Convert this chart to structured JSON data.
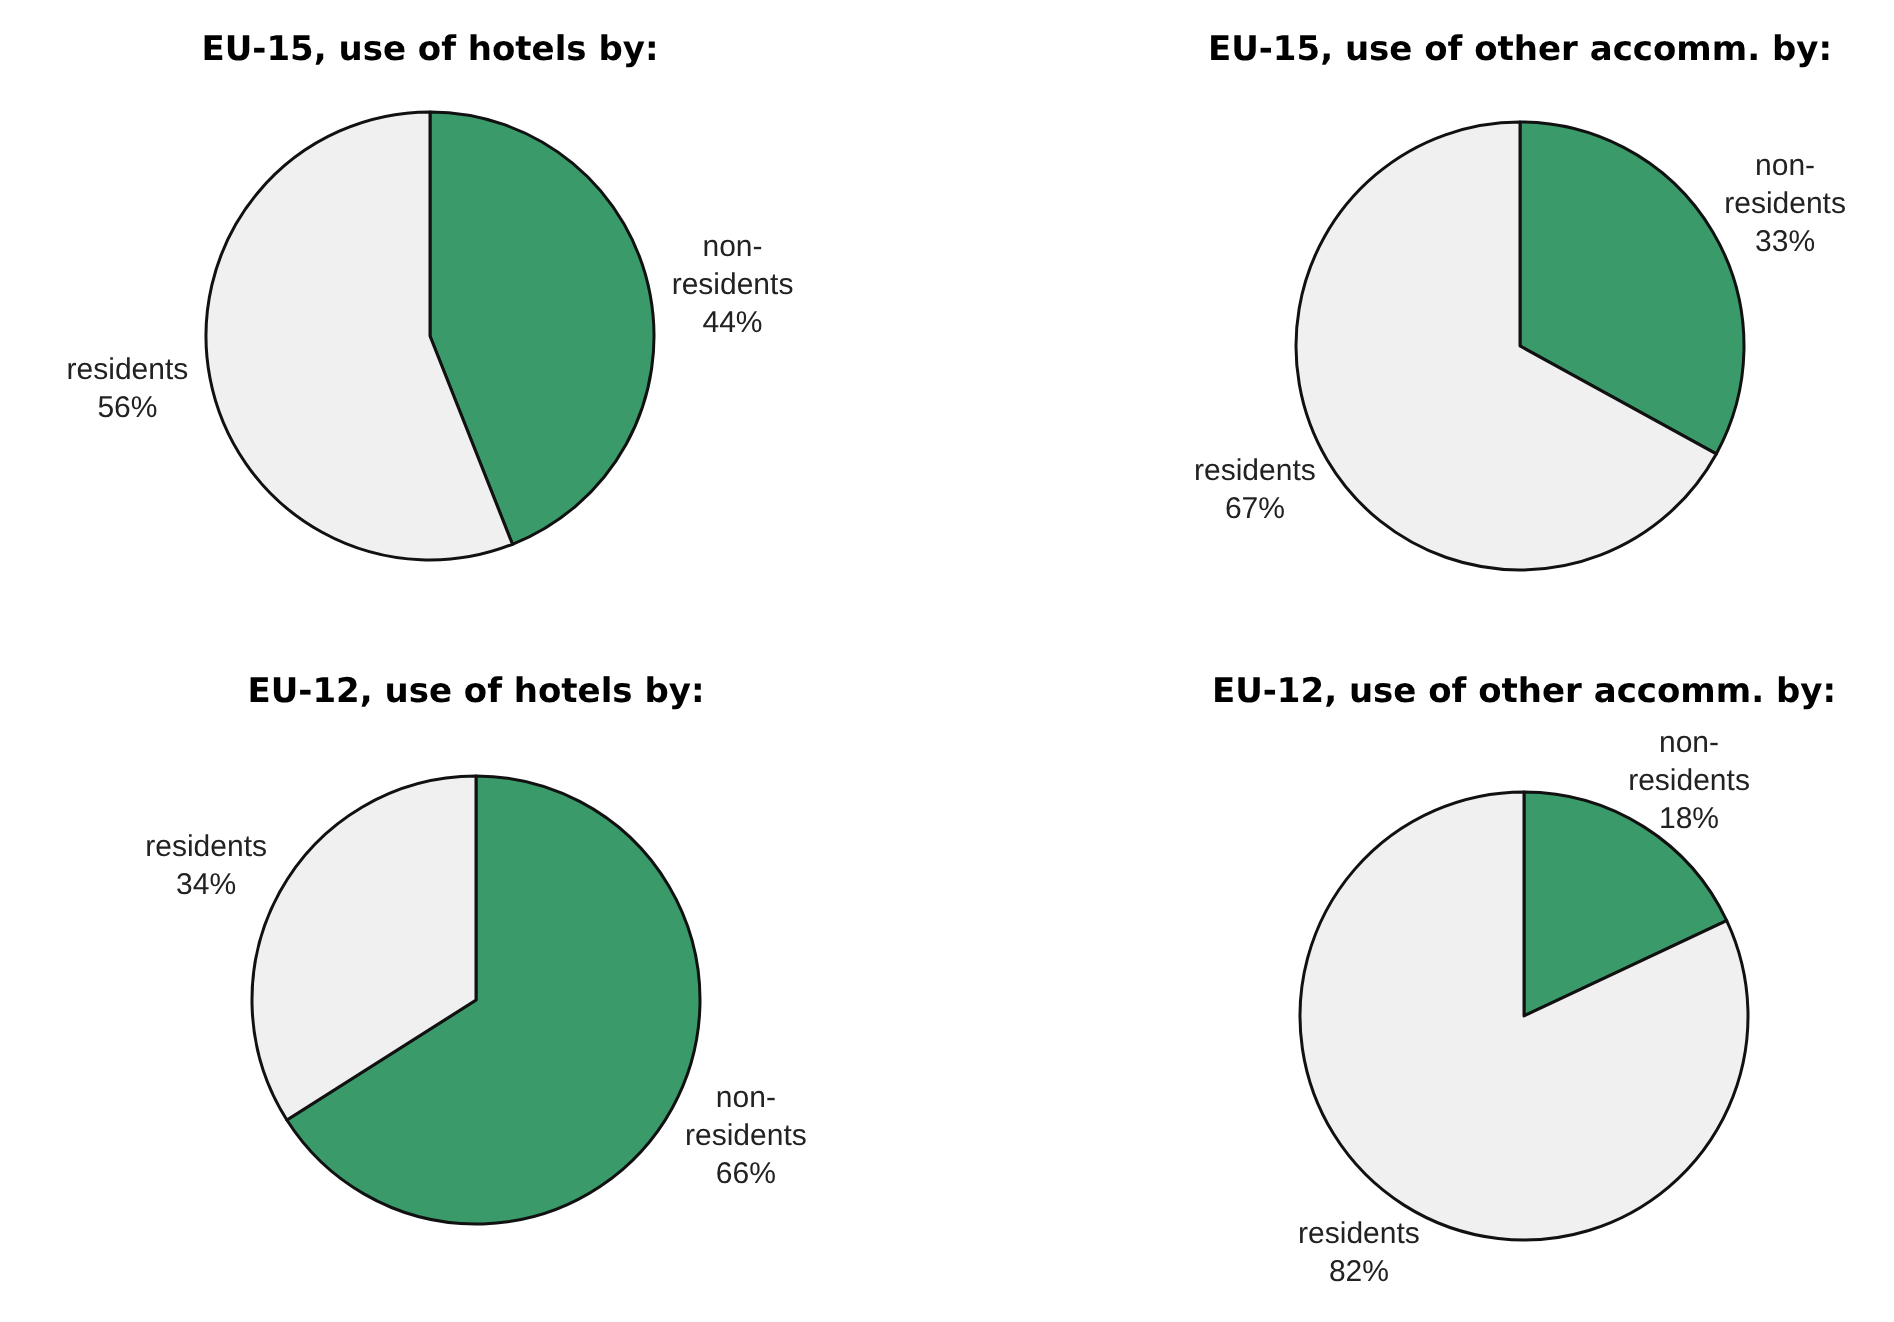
{
  "chart_data": [
    {
      "type": "pie",
      "title": "EU-15, use of hotels by:",
      "categories": [
        "non-residents",
        "residents"
      ],
      "values": [
        44,
        56
      ],
      "colors": [
        "#3a9a6a",
        "#f0f0f0"
      ],
      "value_labels": [
        "44%",
        "56%"
      ]
    },
    {
      "type": "pie",
      "title": "EU-15, use of other accomm. by:",
      "categories": [
        "non-residents",
        "residents"
      ],
      "values": [
        33,
        67
      ],
      "colors": [
        "#3a9a6a",
        "#f0f0f0"
      ],
      "value_labels": [
        "33%",
        "67%"
      ]
    },
    {
      "type": "pie",
      "title": "EU-12, use of hotels by:",
      "categories": [
        "non-residents",
        "residents"
      ],
      "values": [
        66,
        34
      ],
      "colors": [
        "#3a9a6a",
        "#f0f0f0"
      ],
      "value_labels": [
        "66%",
        "34%"
      ]
    },
    {
      "type": "pie",
      "title": "EU-12, use of other accomm. by:",
      "categories": [
        "non-residents",
        "residents"
      ],
      "values": [
        18,
        82
      ],
      "colors": [
        "#3a9a6a",
        "#f0f0f0"
      ],
      "value_labels": [
        "18%",
        "82%"
      ]
    }
  ]
}
